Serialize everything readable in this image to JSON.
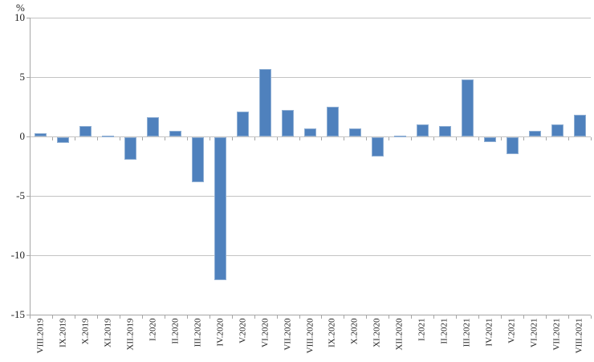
{
  "chart_data": {
    "type": "bar",
    "title": "",
    "ylabel": "%",
    "categories": [
      "VIII.2019",
      "IX.2019",
      "X.2019",
      "XI.2019",
      "XII.2019",
      "I.2020",
      "II.2020",
      "III.2020",
      "IV.2020",
      "V.2020",
      "VI.2020",
      "VII.2020",
      "VIII.2020",
      "IX.2020",
      "X.2020",
      "XI.2020",
      "XII.2020",
      "I.2021",
      "II.2021",
      "III.2021",
      "IV.2021",
      "V.2021",
      "VI.2021",
      "VII.2021",
      "VIII.2021"
    ],
    "values": [
      0.3,
      -0.5,
      0.9,
      0.1,
      -1.9,
      1.6,
      0.5,
      -3.8,
      -12.0,
      2.1,
      5.7,
      2.2,
      0.7,
      2.5,
      0.7,
      -1.6,
      0.1,
      1.0,
      0.9,
      4.8,
      -0.4,
      -1.4,
      0.5,
      1.0,
      1.8
    ],
    "ylim": [
      -15,
      10
    ],
    "yticks": [
      10,
      5,
      0,
      -5,
      -10,
      -15
    ],
    "grid": true,
    "legend_position": "none",
    "colors": {
      "bar": "#4f81bd",
      "bar_border": "#8fafd4",
      "grid": "#c3c3c3",
      "axis": "#a6a6a6",
      "text": "#1f1f1f"
    }
  }
}
